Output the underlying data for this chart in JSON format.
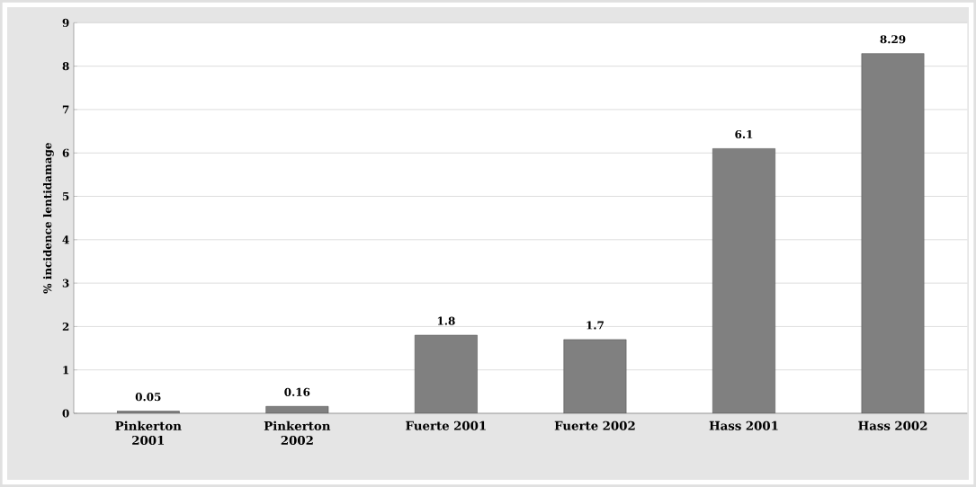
{
  "chart_data": {
    "type": "bar",
    "ylabel": "% incidence lentidamage",
    "categories": [
      "Pinkerton 2001",
      "Pinkerton 2002",
      "Fuerte 2001",
      "Fuerte 2002",
      "Hass 2001",
      "Hass 2002"
    ],
    "values": [
      0.05,
      0.16,
      1.8,
      1.7,
      6.1,
      8.29
    ],
    "color": "#808080",
    "ylim": [
      0,
      9
    ],
    "yticks": [
      0,
      1,
      2,
      3,
      4,
      5,
      6,
      7,
      8,
      9
    ],
    "grid": "y",
    "data_labels": true
  }
}
